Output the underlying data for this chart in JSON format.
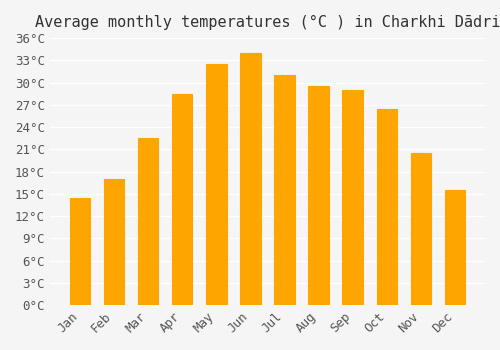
{
  "months": [
    "Jan",
    "Feb",
    "Mar",
    "Apr",
    "May",
    "Jun",
    "Jul",
    "Aug",
    "Sep",
    "Oct",
    "Nov",
    "Dec"
  ],
  "temperatures": [
    14.5,
    17.0,
    22.5,
    28.5,
    32.5,
    34.0,
    31.0,
    29.5,
    29.0,
    26.5,
    20.5,
    15.5
  ],
  "bar_color": "#FFA500",
  "bar_edge_color": "#E08000",
  "title": "Average monthly temperatures (°C ) in Charkhi Dādri",
  "ylabel": "",
  "xlabel": "",
  "ylim": [
    0,
    36
  ],
  "yticks": [
    0,
    3,
    6,
    9,
    12,
    15,
    18,
    21,
    24,
    27,
    30,
    33,
    36
  ],
  "ytick_labels": [
    "0°C",
    "3°C",
    "6°C",
    "9°C",
    "12°C",
    "15°C",
    "18°C",
    "21°C",
    "24°C",
    "27°C",
    "30°C",
    "33°C",
    "36°C"
  ],
  "background_color": "#f5f5f5",
  "grid_color": "#ffffff",
  "title_fontsize": 11,
  "tick_fontsize": 9,
  "bar_width": 0.6
}
